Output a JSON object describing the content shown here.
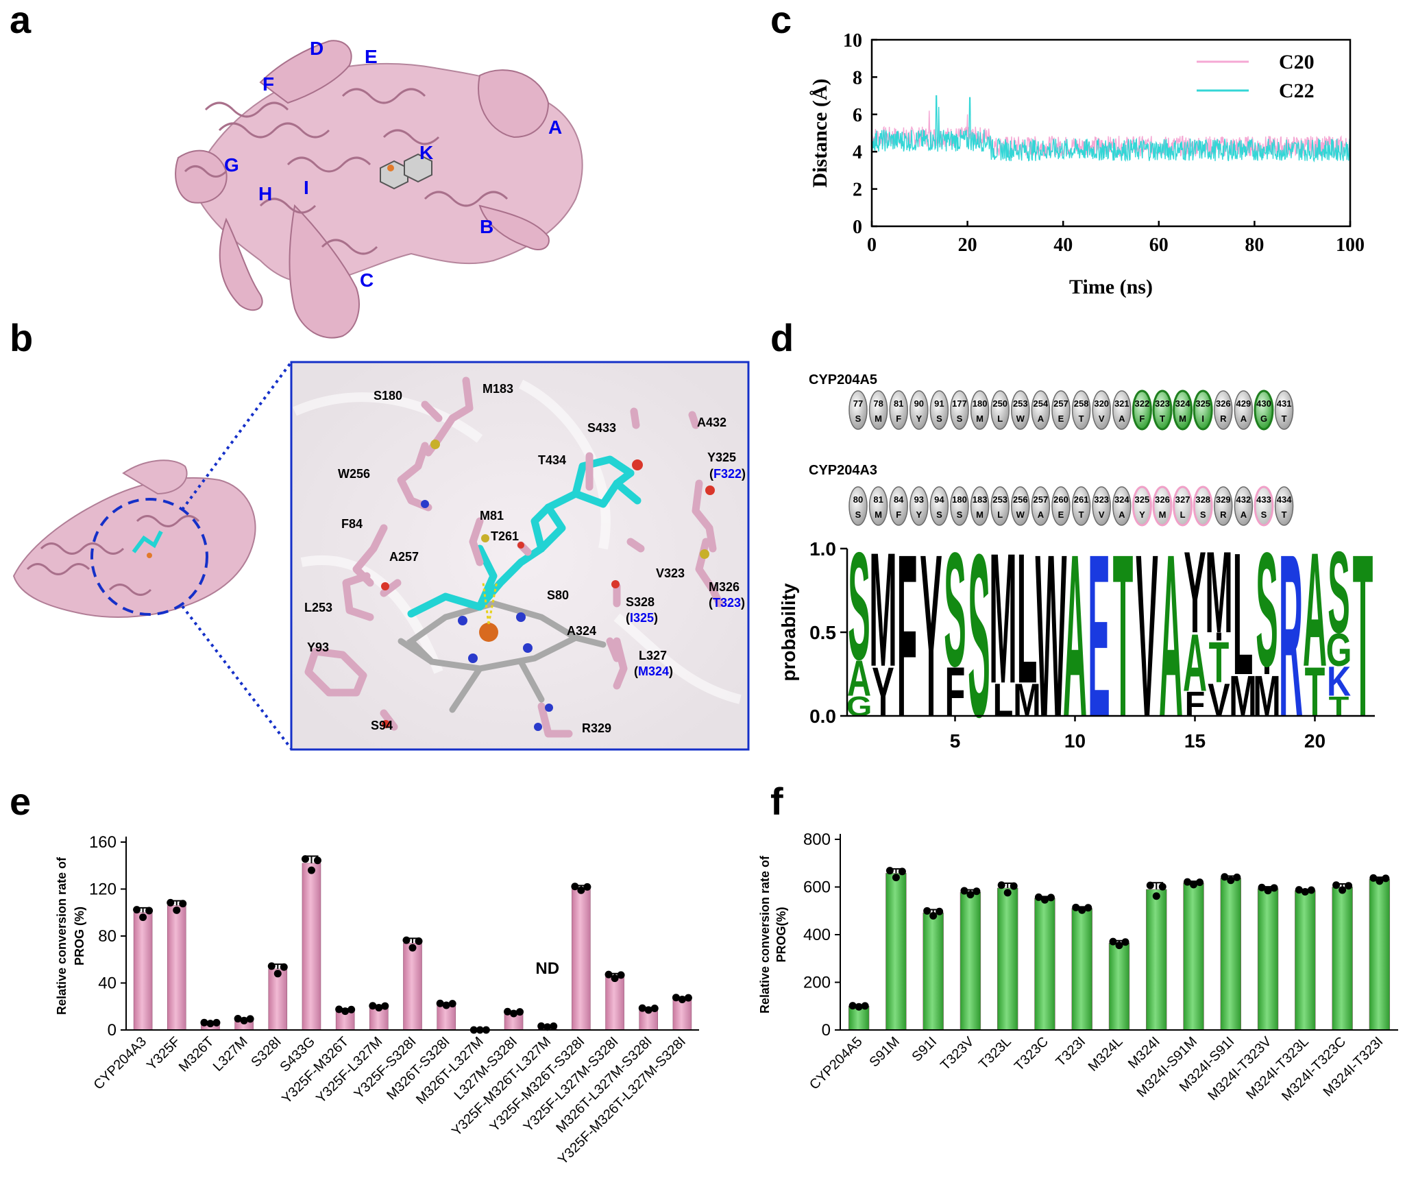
{
  "panels": {
    "a": "a",
    "b": "b",
    "c": "c",
    "d": "d",
    "e": "e",
    "f": "f"
  },
  "panel_a": {
    "helix_labels": [
      "A",
      "B",
      "C",
      "D",
      "E",
      "F",
      "G",
      "H",
      "I",
      "K"
    ]
  },
  "panel_b": {
    "residues": [
      "S180",
      "M183",
      "S433",
      "A432",
      "T434",
      "Y325",
      "W256",
      "M81",
      "T261",
      "F84",
      "A257",
      "V323",
      "L253",
      "S80",
      "S328",
      "M326",
      "A324",
      "Y93",
      "L327",
      "S94",
      "R329"
    ],
    "paren_labels": [
      "F322",
      "I325",
      "T323",
      "M324"
    ],
    "colors": {
      "protein": "#d9a7c0",
      "ligand": "#22d3d3",
      "frame": "#1530c8"
    }
  },
  "chart_data": [
    {
      "panel": "c",
      "type": "line",
      "xlabel": "Time (ns)",
      "ylabel": "Distance (Å)",
      "xlim": [
        0,
        100
      ],
      "ylim": [
        0,
        10
      ],
      "xticks": [
        "0",
        "20",
        "40",
        "60",
        "80",
        "100"
      ],
      "yticks": [
        "0",
        "2",
        "4",
        "6",
        "8",
        "10"
      ],
      "series": [
        {
          "name": "C20",
          "color": "#f5a8d4",
          "mean": 4.3,
          "spread": 0.55,
          "spikes": [
            [
              12,
              6.2
            ],
            [
              20,
              6.0
            ]
          ]
        },
        {
          "name": "C22",
          "color": "#33d6d6",
          "mean": 4.1,
          "spread": 0.6,
          "spikes": [
            [
              13.5,
              7.0
            ],
            [
              20.5,
              6.9
            ],
            [
              14,
              6.4
            ]
          ]
        }
      ]
    },
    {
      "panel": "d",
      "type": "sequence-logo",
      "ylabel": "probability",
      "yticks": [
        "0.0",
        "0.5",
        "1.0"
      ],
      "xticks": [
        "5",
        "10",
        "15",
        "20"
      ],
      "rows": [
        {
          "name": "CYP204A5",
          "positions": [
            "77",
            "78",
            "81",
            "90",
            "91",
            "177",
            "180",
            "250",
            "253",
            "254",
            "257",
            "258",
            "320",
            "321",
            "322",
            "323",
            "324",
            "325",
            "326",
            "429",
            "430",
            "431"
          ],
          "residues": [
            "S",
            "M",
            "F",
            "Y",
            "S",
            "S",
            "M",
            "L",
            "W",
            "A",
            "E",
            "T",
            "V",
            "A",
            "F",
            "T",
            "M",
            "I",
            "R",
            "A",
            "G",
            "T"
          ],
          "highlight": [
            14,
            15,
            16,
            17,
            20
          ],
          "highlight_color": "#33a833"
        },
        {
          "name": "CYP204A3",
          "positions": [
            "80",
            "81",
            "84",
            "93",
            "94",
            "180",
            "183",
            "253",
            "256",
            "257",
            "260",
            "261",
            "323",
            "324",
            "325",
            "326",
            "327",
            "328",
            "329",
            "432",
            "433",
            "434"
          ],
          "residues": [
            "S",
            "M",
            "F",
            "Y",
            "S",
            "S",
            "M",
            "L",
            "W",
            "A",
            "E",
            "T",
            "V",
            "A",
            "Y",
            "M",
            "L",
            "S",
            "R",
            "A",
            "S",
            "T"
          ],
          "highlight": [
            14,
            15,
            16,
            17,
            20
          ],
          "highlight_color": "#f0a0c8"
        }
      ],
      "columns": [
        [
          [
            "G",
            0.12
          ],
          [
            "A",
            0.22
          ],
          [
            "S",
            0.66
          ]
        ],
        [
          [
            "Y",
            0.3
          ],
          [
            "M",
            0.7
          ]
        ],
        [
          [
            "F",
            1.0
          ]
        ],
        [
          [
            "Y",
            1.0
          ]
        ],
        [
          [
            "F",
            0.3
          ],
          [
            "S",
            0.7
          ]
        ],
        [
          [
            "S",
            1.0
          ]
        ],
        [
          [
            "L",
            0.2
          ],
          [
            "M",
            0.8
          ]
        ],
        [
          [
            "M",
            0.2
          ],
          [
            "L",
            0.8
          ]
        ],
        [
          [
            "W",
            1.0
          ]
        ],
        [
          [
            "A",
            1.0
          ]
        ],
        [
          [
            "E",
            1.0
          ]
        ],
        [
          [
            "T",
            1.0
          ]
        ],
        [
          [
            "V",
            1.0
          ]
        ],
        [
          [
            "A",
            1.0
          ]
        ],
        [
          [
            "F",
            0.15
          ],
          [
            "A",
            0.35
          ],
          [
            "Y",
            0.5
          ]
        ],
        [
          [
            "V",
            0.2
          ],
          [
            "T",
            0.25
          ],
          [
            "I",
            0.05
          ],
          [
            "M",
            0.5
          ]
        ],
        [
          [
            "M",
            0.25
          ],
          [
            "L",
            0.75
          ]
        ],
        [
          [
            "M",
            0.25
          ],
          [
            "I",
            0.05
          ],
          [
            "S",
            0.7
          ]
        ],
        [
          [
            "R",
            1.0
          ]
        ],
        [
          [
            "T",
            0.3
          ],
          [
            "A",
            0.7
          ]
        ],
        [
          [
            "T",
            0.12
          ],
          [
            "K",
            0.18
          ],
          [
            "G",
            0.2
          ],
          [
            "S",
            0.5
          ]
        ],
        [
          [
            "T",
            1.0
          ]
        ]
      ],
      "aa_colors": {
        "S": "#138a13",
        "G": "#138a13",
        "T": "#138a13",
        "A": "#138a13",
        "K": "#1a3ae0",
        "R": "#1a3ae0",
        "E": "#1a3ae0",
        "M": "#000000",
        "F": "#000000",
        "Y": "#000000",
        "L": "#000000",
        "W": "#000000",
        "V": "#000000",
        "I": "#000000"
      }
    },
    {
      "panel": "e",
      "type": "bar",
      "ylabel": "Relative conversion rate of PROG  (%)",
      "ylim": [
        0,
        160
      ],
      "yticks": [
        "0",
        "40",
        "80",
        "120",
        "160"
      ],
      "bar_color": "#d98cb8",
      "categories": [
        "CYP204A3",
        "Y325F",
        "M326T",
        "L327M",
        "S328I",
        "S433G",
        "Y325F-M326T",
        "Y325F-L327M",
        "Y325F-S328I",
        "M326T-S328I",
        "M326T-L327M",
        "L327M-S328I",
        "Y325F-M326T-L327M",
        "Y325F-M326T-S328I",
        "Y325F-L327M-S328I",
        "M326T-L327M-S328I",
        "Y325F-M326T-L327M-S328I"
      ],
      "values": [
        100,
        106,
        6,
        9,
        52,
        142,
        17,
        20,
        74,
        22,
        0,
        15,
        3,
        121,
        46,
        18,
        27
      ],
      "errors": [
        4,
        4,
        0.5,
        1,
        4,
        6,
        1,
        1,
        4,
        1,
        0,
        1,
        0.5,
        2,
        2,
        1,
        1
      ],
      "annotation": "ND"
    },
    {
      "panel": "f",
      "type": "bar",
      "ylabel": "Relative conversion rate of PROG(%)",
      "ylim": [
        0,
        800
      ],
      "yticks": [
        "0",
        "200",
        "400",
        "600",
        "800"
      ],
      "bar_color": "#4cbf4c",
      "categories": [
        "CYP204A5",
        "S91M",
        "S91I",
        "T323V",
        "T323L",
        "T323C",
        "T323I",
        "M324L",
        "M324I",
        "M324I-S91M",
        "M324I-S91I",
        "M324I-T323V",
        "M324I-T323L",
        "M324I-T323C",
        "M324I-T323I"
      ],
      "values": [
        100,
        658,
        492,
        578,
        596,
        553,
        510,
        365,
        590,
        617,
        637,
        593,
        585,
        600,
        633
      ],
      "errors": [
        3,
        18,
        13,
        10,
        20,
        7,
        7,
        10,
        28,
        7,
        9,
        8,
        5,
        13,
        8
      ]
    }
  ]
}
